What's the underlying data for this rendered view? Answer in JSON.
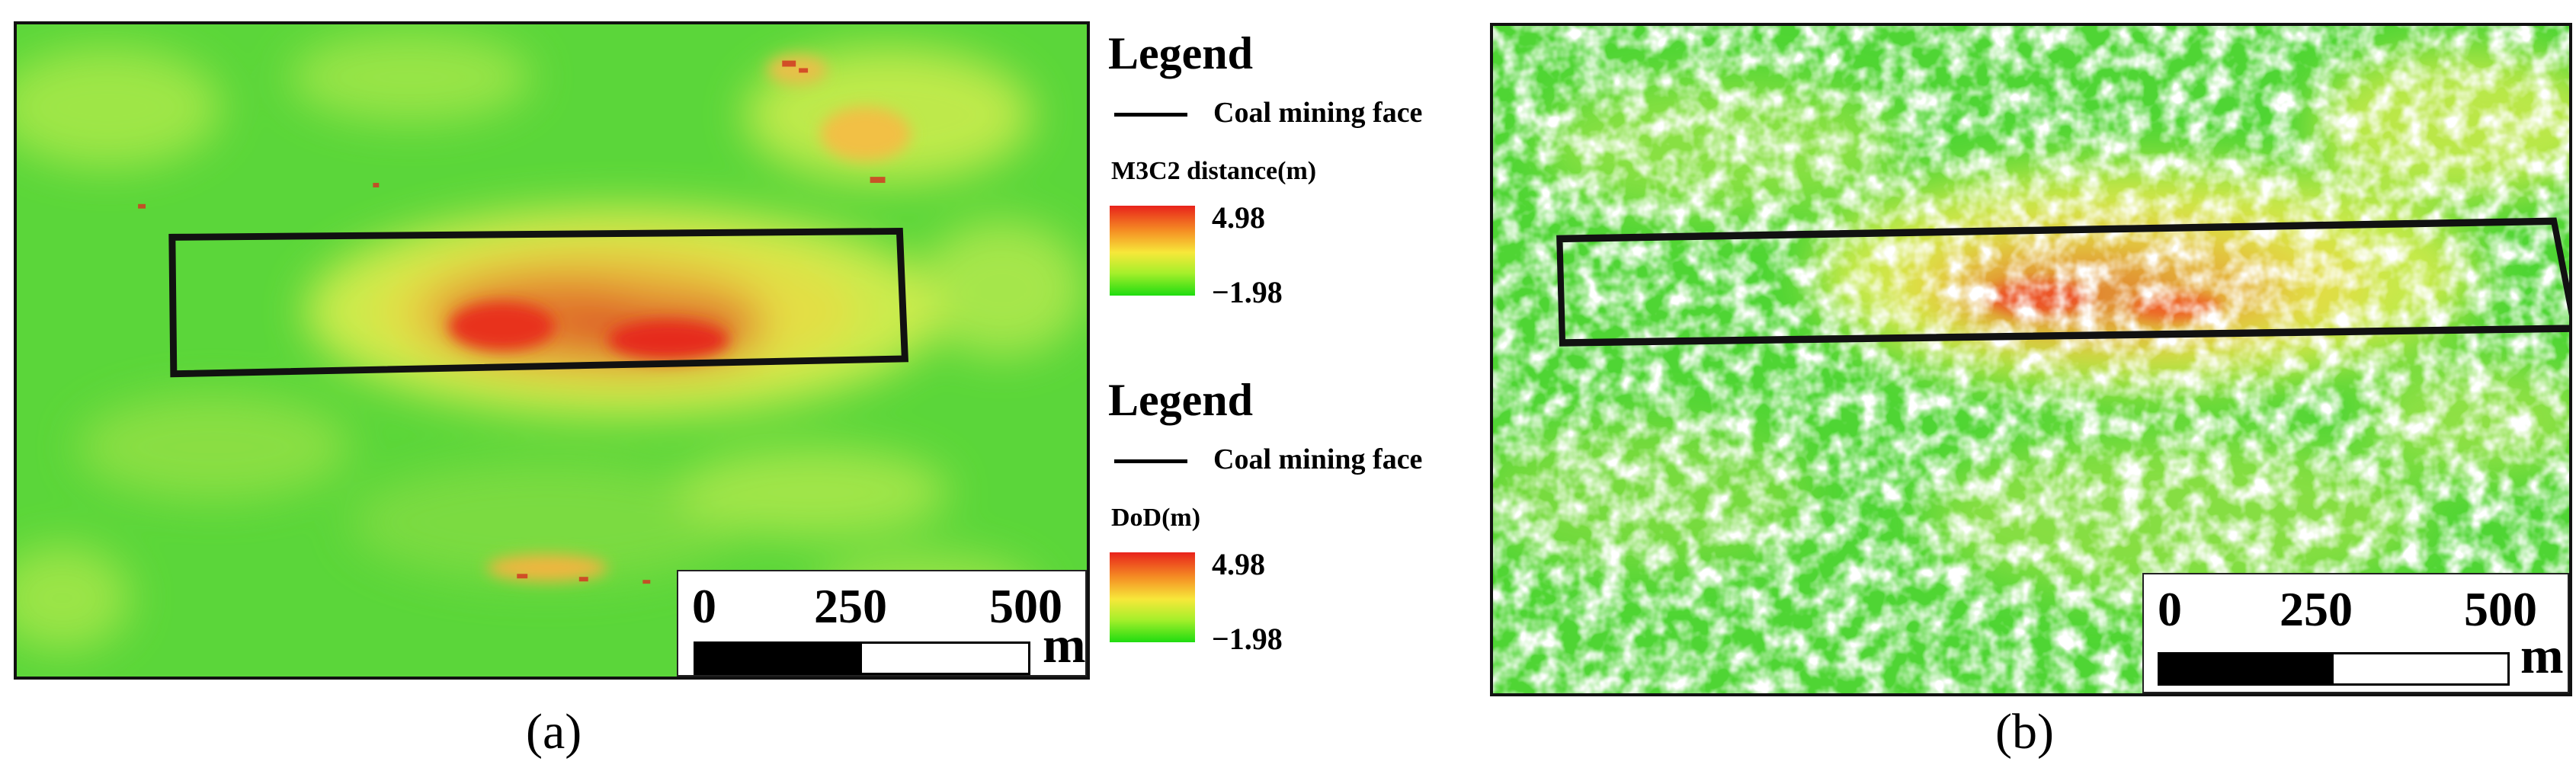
{
  "panels": {
    "a": {
      "label": "(a)",
      "scalebar": {
        "ticks": [
          "0",
          "250",
          "500"
        ],
        "unit": "m"
      }
    },
    "b": {
      "label": "(b)",
      "scalebar": {
        "ticks": [
          "0",
          "250",
          "500"
        ],
        "unit": "m"
      }
    }
  },
  "legends": [
    {
      "title": "Legend",
      "line_label": "Coal mining face",
      "ramp_title": "M3C2 distance(m)",
      "max": "4.98",
      "min": "−1.98"
    },
    {
      "title": "Legend",
      "line_label": "Coal mining face",
      "ramp_title": "DoD(m)",
      "max": "4.98",
      "min": "−1.98"
    }
  ],
  "colors": {
    "low": "#1fdc10",
    "mid": "#f7e83a",
    "high": "#e8221b",
    "outline": "#000000"
  }
}
